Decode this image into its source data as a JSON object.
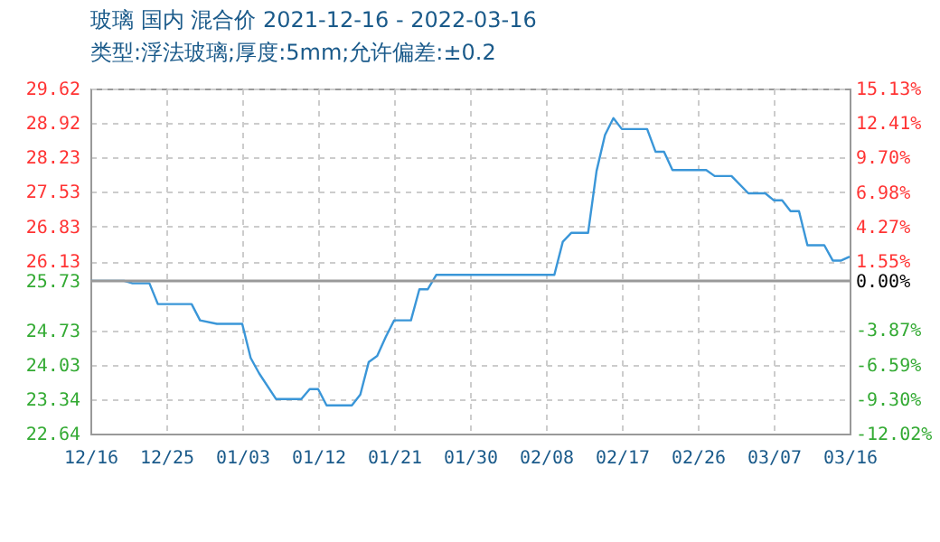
{
  "chart_data": {
    "type": "line",
    "title": "玻璃 国内 混合价 2021-12-16 - 2022-03-16",
    "subtitle": "类型:浮法玻璃;厚度:5mm;允许偏差:±0.2",
    "x": [
      "2021-12-16",
      "2021-12-20",
      "2021-12-21",
      "2021-12-23",
      "2021-12-24",
      "2021-12-28",
      "2021-12-29",
      "2021-12-31",
      "2022-01-03",
      "2022-01-04",
      "2022-01-05",
      "2022-01-07",
      "2022-01-10",
      "2022-01-11",
      "2022-01-12",
      "2022-01-13",
      "2022-01-16",
      "2022-01-17",
      "2022-01-18",
      "2022-01-19",
      "2022-01-20",
      "2022-01-21",
      "2022-01-23",
      "2022-01-24",
      "2022-01-25",
      "2022-01-26",
      "2022-02-09",
      "2022-02-10",
      "2022-02-11",
      "2022-02-13",
      "2022-02-14",
      "2022-02-15",
      "2022-02-16",
      "2022-02-17",
      "2022-02-20",
      "2022-02-21",
      "2022-02-22",
      "2022-02-23",
      "2022-02-27",
      "2022-02-28",
      "2022-03-02",
      "2022-03-04",
      "2022-03-06",
      "2022-03-07",
      "2022-03-08",
      "2022-03-09",
      "2022-03-10",
      "2022-03-11",
      "2022-03-13",
      "2022-03-14",
      "2022-03-15",
      "2022-03-16"
    ],
    "series": [
      {
        "color": "#3a96d8",
        "values": [
          25.73,
          25.73,
          25.68,
          25.68,
          25.26,
          25.26,
          24.93,
          24.86,
          24.86,
          24.17,
          23.86,
          23.34,
          23.34,
          23.54,
          23.54,
          23.21,
          23.21,
          23.43,
          24.09,
          24.21,
          24.59,
          24.93,
          24.93,
          25.56,
          25.56,
          25.85,
          25.85,
          26.52,
          26.7,
          26.7,
          27.95,
          28.68,
          29.02,
          28.8,
          28.8,
          28.34,
          28.34,
          27.97,
          27.97,
          27.85,
          27.85,
          27.5,
          27.5,
          27.36,
          27.36,
          27.14,
          27.14,
          26.45,
          26.45,
          26.14,
          26.14,
          26.22
        ]
      }
    ],
    "xlim": [
      "2021-12-16",
      "2022-03-16"
    ],
    "xticks": [
      {
        "value": "2021-12-16",
        "label": "12/16"
      },
      {
        "value": "2021-12-25",
        "label": "12/25"
      },
      {
        "value": "2022-01-03",
        "label": "01/03"
      },
      {
        "value": "2022-01-12",
        "label": "01/12"
      },
      {
        "value": "2022-01-21",
        "label": "01/21"
      },
      {
        "value": "2022-01-30",
        "label": "01/30"
      },
      {
        "value": "2022-02-08",
        "label": "02/08"
      },
      {
        "value": "2022-02-17",
        "label": "02/17"
      },
      {
        "value": "2022-02-26",
        "label": "02/26"
      },
      {
        "value": "2022-03-07",
        "label": "03/07"
      },
      {
        "value": "2022-03-16",
        "label": "03/16"
      }
    ],
    "ylim": [
      22.64,
      29.62
    ],
    "yticks": [
      22.64,
      23.34,
      24.03,
      24.73,
      25.73,
      26.13,
      26.83,
      27.53,
      28.23,
      28.92,
      29.62
    ],
    "y2lim": [
      -12.02,
      15.13
    ],
    "y2ticks": [
      {
        "value": -12.02,
        "label": "-12.02%"
      },
      {
        "value": -9.3,
        "label": "-9.30%"
      },
      {
        "value": -6.59,
        "label": "-6.59%"
      },
      {
        "value": -3.87,
        "label": "-3.87%"
      },
      {
        "value": 0,
        "label": "0.00%"
      },
      {
        "value": 1.55,
        "label": "1.55%"
      },
      {
        "value": 4.27,
        "label": "4.27%"
      },
      {
        "value": 6.98,
        "label": "6.98%"
      },
      {
        "value": 9.7,
        "label": "9.70%"
      },
      {
        "value": 12.41,
        "label": "12.41%"
      },
      {
        "value": 15.13,
        "label": "15.13%"
      }
    ],
    "ref_lines": [
      {
        "axis": "y2",
        "value": 0,
        "color": "#999999"
      }
    ],
    "grid": true,
    "line_style": "solid",
    "marker": "none"
  }
}
